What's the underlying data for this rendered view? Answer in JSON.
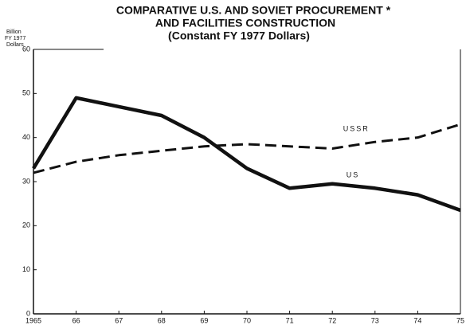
{
  "chart_data": {
    "type": "line",
    "title": [
      "COMPARATIVE U.S. AND SOVIET PROCUREMENT *",
      "AND FACILITIES CONSTRUCTION",
      "(Constant FY 1977 Dollars)"
    ],
    "y_axis_label": [
      "Billion",
      "FY 1977",
      "Dollars"
    ],
    "categories": [
      "1965",
      "66",
      "67",
      "68",
      "69",
      "70",
      "71",
      "72",
      "73",
      "74",
      "75"
    ],
    "series": [
      {
        "name": "USSR",
        "color": "#111111",
        "dashed": true,
        "values": [
          32,
          34.5,
          36,
          37,
          38,
          38.5,
          38,
          37.5,
          39,
          40,
          43
        ]
      },
      {
        "name": "US",
        "color": "#111111",
        "dashed": false,
        "values": [
          33,
          49,
          47,
          45,
          40,
          33,
          28.5,
          29.5,
          28.5,
          27,
          23.5
        ]
      }
    ],
    "ylim": [
      0,
      60
    ],
    "yticks": [
      0,
      10,
      20,
      30,
      40,
      50,
      60
    ],
    "grid": false
  }
}
